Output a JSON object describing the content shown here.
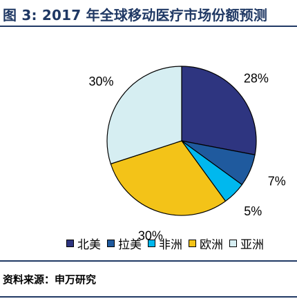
{
  "figure": {
    "title": "图 3: 2017 年全球移动医疗市场份额预测",
    "source": "资料来源：申万研究"
  },
  "colors": {
    "accent": "#1f3864",
    "slice_outline": "#000000"
  },
  "chart_data": {
    "type": "pie",
    "title": "",
    "categories": [
      "北美",
      "拉美",
      "非洲",
      "欧洲",
      "亚洲"
    ],
    "values": [
      28,
      7,
      5,
      30,
      30
    ],
    "labels": [
      "28%",
      "7%",
      "5%",
      "30%",
      "30%"
    ],
    "colors": [
      "#2e3580",
      "#1f5a9e",
      "#00b8ee",
      "#f3c318",
      "#d6eef2"
    ],
    "start": "12 o'clock",
    "direction": "clockwise",
    "legend_position": "bottom"
  }
}
